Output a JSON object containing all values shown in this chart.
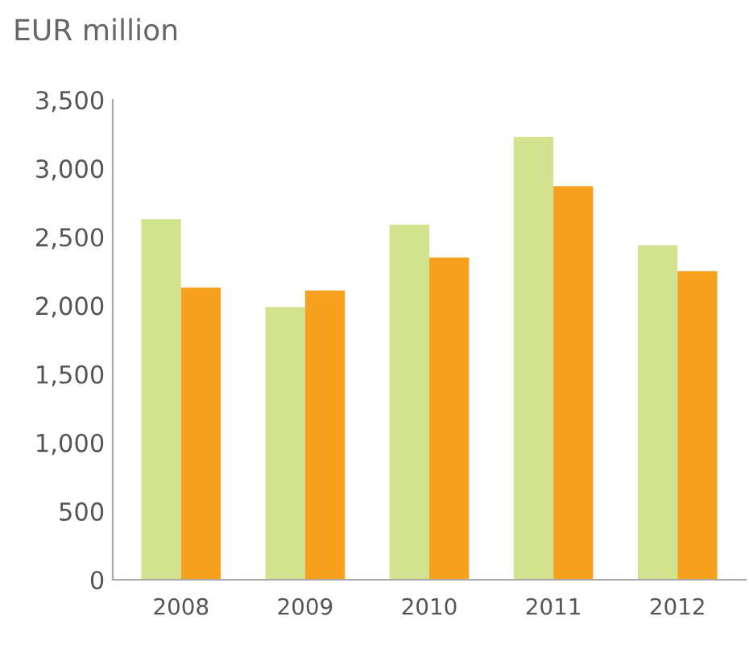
{
  "chart_data": {
    "type": "bar",
    "ylabel": "EUR million",
    "categories": [
      "2008",
      "2009",
      "2010",
      "2011",
      "2012"
    ],
    "series": [
      {
        "color": "#d2e28e",
        "values": [
          2630,
          1990,
          2590,
          3230,
          2440
        ]
      },
      {
        "color": "#f7a11e",
        "values": [
          2130,
          2110,
          2350,
          2870,
          2250
        ]
      }
    ],
    "ylim": [
      0,
      3500
    ],
    "yticks": [
      {
        "value": 0,
        "label": "0"
      },
      {
        "value": 500,
        "label": "500"
      },
      {
        "value": 1000,
        "label": "1,000"
      },
      {
        "value": 1500,
        "label": "1,500"
      },
      {
        "value": 2000,
        "label": "2,000"
      },
      {
        "value": 2500,
        "label": "2,500"
      },
      {
        "value": 3000,
        "label": "3,000"
      },
      {
        "value": 3500,
        "label": "3,500"
      }
    ],
    "grid": false,
    "legend": false
  }
}
